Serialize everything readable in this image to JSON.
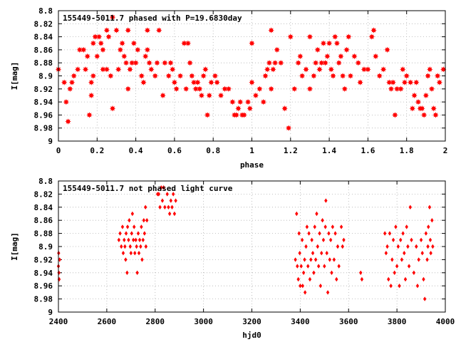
{
  "chart_data": [
    {
      "type": "scatter",
      "title": "155449-5011.7 phased with P=19.6830day",
      "xlabel": "phase",
      "ylabel": "I[mag]",
      "xlim": [
        0,
        2
      ],
      "ylim": [
        9,
        8.8
      ],
      "y_inverted": true,
      "x_ticks": [
        "0",
        "0.2",
        "0.4",
        "0.6",
        "0.8",
        "1",
        "1.2",
        "1.4",
        "1.6",
        "1.8",
        "2"
      ],
      "y_ticks": [
        "8.8",
        "8.82",
        "8.84",
        "8.86",
        "8.88",
        "8.9",
        "8.92",
        "8.94",
        "8.96",
        "8.98",
        "9"
      ],
      "grid": true,
      "marker": "star",
      "color": "#ff0000",
      "points": [
        [
          0.0,
          8.89
        ],
        [
          0.03,
          8.91
        ],
        [
          0.04,
          8.94
        ],
        [
          0.05,
          8.97
        ],
        [
          0.06,
          8.92
        ],
        [
          0.07,
          8.91
        ],
        [
          0.08,
          8.9
        ],
        [
          0.1,
          8.89
        ],
        [
          0.11,
          8.86
        ],
        [
          0.13,
          8.86
        ],
        [
          0.14,
          8.89
        ],
        [
          0.15,
          8.87
        ],
        [
          0.16,
          8.96
        ],
        [
          0.17,
          8.93
        ],
        [
          0.17,
          8.91
        ],
        [
          0.18,
          8.9
        ],
        [
          0.18,
          8.85
        ],
        [
          0.19,
          8.84
        ],
        [
          0.2,
          8.87
        ],
        [
          0.21,
          8.84
        ],
        [
          0.22,
          8.85
        ],
        [
          0.23,
          8.89
        ],
        [
          0.23,
          8.86
        ],
        [
          0.25,
          8.89
        ],
        [
          0.25,
          8.83
        ],
        [
          0.26,
          8.84
        ],
        [
          0.27,
          8.9
        ],
        [
          0.28,
          8.95
        ],
        [
          0.28,
          8.81
        ],
        [
          0.3,
          8.83
        ],
        [
          0.31,
          8.89
        ],
        [
          0.32,
          8.86
        ],
        [
          0.33,
          8.85
        ],
        [
          0.34,
          8.87
        ],
        [
          0.35,
          8.88
        ],
        [
          0.36,
          8.92
        ],
        [
          0.36,
          8.83
        ],
        [
          0.37,
          8.89
        ],
        [
          0.38,
          8.88
        ],
        [
          0.39,
          8.85
        ],
        [
          0.4,
          8.88
        ],
        [
          0.41,
          8.86
        ],
        [
          0.43,
          8.9
        ],
        [
          0.44,
          8.91
        ],
        [
          0.45,
          8.87
        ],
        [
          0.46,
          8.86
        ],
        [
          0.46,
          8.83
        ],
        [
          0.47,
          8.88
        ],
        [
          0.48,
          8.89
        ],
        [
          0.5,
          8.9
        ],
        [
          0.51,
          8.88
        ],
        [
          0.52,
          8.83
        ],
        [
          0.54,
          8.93
        ],
        [
          0.55,
          8.88
        ],
        [
          0.57,
          8.9
        ],
        [
          0.58,
          8.88
        ],
        [
          0.59,
          8.89
        ],
        [
          0.6,
          8.91
        ],
        [
          0.61,
          8.92
        ],
        [
          0.63,
          8.9
        ],
        [
          0.65,
          8.85
        ],
        [
          0.66,
          8.92
        ],
        [
          0.67,
          8.85
        ],
        [
          0.68,
          8.88
        ],
        [
          0.69,
          8.9
        ],
        [
          0.7,
          8.91
        ],
        [
          0.71,
          8.92
        ],
        [
          0.72,
          8.91
        ],
        [
          0.73,
          8.92
        ],
        [
          0.74,
          8.93
        ],
        [
          0.75,
          8.9
        ],
        [
          0.76,
          8.89
        ],
        [
          0.77,
          8.96
        ],
        [
          0.78,
          8.93
        ],
        [
          0.79,
          8.91
        ],
        [
          0.81,
          8.9
        ],
        [
          0.82,
          8.91
        ],
        [
          0.84,
          8.93
        ],
        [
          0.86,
          8.92
        ],
        [
          0.88,
          8.92
        ],
        [
          0.9,
          8.94
        ],
        [
          0.91,
          8.96
        ],
        [
          0.92,
          8.96
        ],
        [
          0.93,
          8.95
        ],
        [
          0.94,
          8.94
        ],
        [
          0.95,
          8.96
        ],
        [
          0.96,
          8.96
        ],
        [
          0.98,
          8.94
        ],
        [
          0.99,
          8.95
        ],
        [
          1.0,
          8.91
        ],
        [
          1.0,
          8.85
        ],
        [
          1.02,
          8.93
        ],
        [
          1.04,
          8.92
        ],
        [
          1.06,
          8.94
        ],
        [
          1.07,
          8.9
        ],
        [
          1.08,
          8.89
        ],
        [
          1.09,
          8.88
        ],
        [
          1.1,
          8.92
        ],
        [
          1.1,
          8.83
        ],
        [
          1.11,
          8.89
        ],
        [
          1.12,
          8.88
        ],
        [
          1.13,
          8.86
        ],
        [
          1.15,
          8.88
        ],
        [
          1.17,
          8.95
        ],
        [
          1.19,
          8.98
        ],
        [
          1.2,
          8.84
        ],
        [
          1.22,
          8.92
        ],
        [
          1.24,
          8.88
        ],
        [
          1.25,
          8.87
        ],
        [
          1.26,
          8.9
        ],
        [
          1.28,
          8.89
        ],
        [
          1.3,
          8.92
        ],
        [
          1.3,
          8.84
        ],
        [
          1.32,
          8.9
        ],
        [
          1.33,
          8.88
        ],
        [
          1.34,
          8.86
        ],
        [
          1.35,
          8.89
        ],
        [
          1.36,
          8.88
        ],
        [
          1.37,
          8.85
        ],
        [
          1.38,
          8.88
        ],
        [
          1.39,
          8.87
        ],
        [
          1.4,
          8.85
        ],
        [
          1.41,
          8.89
        ],
        [
          1.42,
          8.9
        ],
        [
          1.43,
          8.84
        ],
        [
          1.44,
          8.85
        ],
        [
          1.45,
          8.88
        ],
        [
          1.46,
          8.87
        ],
        [
          1.47,
          8.9
        ],
        [
          1.48,
          8.92
        ],
        [
          1.49,
          8.86
        ],
        [
          1.5,
          8.84
        ],
        [
          1.51,
          8.9
        ],
        [
          1.53,
          8.87
        ],
        [
          1.55,
          8.88
        ],
        [
          1.56,
          8.91
        ],
        [
          1.58,
          8.89
        ],
        [
          1.6,
          8.89
        ],
        [
          1.62,
          8.84
        ],
        [
          1.63,
          8.83
        ],
        [
          1.64,
          8.87
        ],
        [
          1.66,
          8.9
        ],
        [
          1.68,
          8.89
        ],
        [
          1.7,
          8.86
        ],
        [
          1.71,
          8.91
        ],
        [
          1.72,
          8.92
        ],
        [
          1.73,
          8.91
        ],
        [
          1.74,
          8.96
        ],
        [
          1.75,
          8.92
        ],
        [
          1.77,
          8.92
        ],
        [
          1.78,
          8.89
        ],
        [
          1.79,
          8.91
        ],
        [
          1.8,
          8.9
        ],
        [
          1.82,
          8.91
        ],
        [
          1.83,
          8.95
        ],
        [
          1.84,
          8.93
        ],
        [
          1.85,
          8.91
        ],
        [
          1.86,
          8.94
        ],
        [
          1.87,
          8.95
        ],
        [
          1.88,
          8.95
        ],
        [
          1.89,
          8.96
        ],
        [
          1.9,
          8.93
        ],
        [
          1.91,
          8.9
        ],
        [
          1.92,
          8.89
        ],
        [
          1.93,
          8.92
        ],
        [
          1.94,
          8.95
        ],
        [
          1.95,
          8.96
        ],
        [
          1.96,
          8.9
        ],
        [
          1.97,
          8.91
        ],
        [
          1.99,
          8.89
        ]
      ]
    },
    {
      "type": "scatter",
      "title": "155449-5011.7 not phased light curve",
      "xlabel": "hjd0",
      "ylabel": "I[mag]",
      "xlim": [
        2400,
        4000
      ],
      "ylim": [
        9,
        8.8
      ],
      "y_inverted": true,
      "x_ticks": [
        "2400",
        "2600",
        "2800",
        "3000",
        "3200",
        "3400",
        "3600",
        "3800",
        "4000"
      ],
      "y_ticks": [
        "8.8",
        "8.82",
        "8.84",
        "8.86",
        "8.88",
        "8.9",
        "8.92",
        "8.94",
        "8.96",
        "8.98",
        "9"
      ],
      "grid": true,
      "marker": "diamond",
      "color": "#ff0000",
      "points": [
        [
          2400,
          8.93
        ],
        [
          2401,
          8.91
        ],
        [
          2402,
          8.94
        ],
        [
          2403,
          8.95
        ],
        [
          2405,
          8.92
        ],
        [
          2650,
          8.89
        ],
        [
          2655,
          8.88
        ],
        [
          2660,
          8.9
        ],
        [
          2665,
          8.87
        ],
        [
          2668,
          8.91
        ],
        [
          2672,
          8.89
        ],
        [
          2675,
          8.9
        ],
        [
          2678,
          8.92
        ],
        [
          2680,
          8.88
        ],
        [
          2684,
          8.94
        ],
        [
          2686,
          8.87
        ],
        [
          2690,
          8.89
        ],
        [
          2693,
          8.86
        ],
        [
          2697,
          8.9
        ],
        [
          2700,
          8.91
        ],
        [
          2703,
          8.88
        ],
        [
          2706,
          8.85
        ],
        [
          2710,
          8.89
        ],
        [
          2713,
          8.87
        ],
        [
          2716,
          8.91
        ],
        [
          2720,
          8.89
        ],
        [
          2723,
          8.9
        ],
        [
          2726,
          8.94
        ],
        [
          2730,
          8.88
        ],
        [
          2733,
          8.91
        ],
        [
          2736,
          8.89
        ],
        [
          2740,
          8.9
        ],
        [
          2743,
          8.87
        ],
        [
          2746,
          8.92
        ],
        [
          2750,
          8.89
        ],
        [
          2753,
          8.86
        ],
        [
          2756,
          8.88
        ],
        [
          2760,
          8.84
        ],
        [
          2762,
          8.9
        ],
        [
          2766,
          8.86
        ],
        [
          2810,
          8.82
        ],
        [
          2815,
          8.82
        ],
        [
          2820,
          8.84
        ],
        [
          2825,
          8.81
        ],
        [
          2830,
          8.83
        ],
        [
          2835,
          8.81
        ],
        [
          2840,
          8.84
        ],
        [
          2850,
          8.82
        ],
        [
          2855,
          8.84
        ],
        [
          2860,
          8.85
        ],
        [
          2865,
          8.83
        ],
        [
          2870,
          8.84
        ],
        [
          2875,
          8.82
        ],
        [
          2880,
          8.85
        ],
        [
          2885,
          8.83
        ],
        [
          3380,
          8.92
        ],
        [
          3385,
          8.85
        ],
        [
          3388,
          8.93
        ],
        [
          3392,
          8.95
        ],
        [
          3395,
          8.88
        ],
        [
          3398,
          8.91
        ],
        [
          3400,
          8.96
        ],
        [
          3404,
          8.93
        ],
        [
          3408,
          8.89
        ],
        [
          3410,
          8.96
        ],
        [
          3414,
          8.94
        ],
        [
          3418,
          8.92
        ],
        [
          3420,
          8.97
        ],
        [
          3424,
          8.9
        ],
        [
          3428,
          8.87
        ],
        [
          3432,
          8.93
        ],
        [
          3436,
          8.88
        ],
        [
          3440,
          8.95
        ],
        [
          3444,
          8.92
        ],
        [
          3448,
          8.89
        ],
        [
          3452,
          8.91
        ],
        [
          3456,
          8.94
        ],
        [
          3460,
          8.87
        ],
        [
          3464,
          8.92
        ],
        [
          3468,
          8.85
        ],
        [
          3472,
          8.9
        ],
        [
          3476,
          8.93
        ],
        [
          3480,
          8.88
        ],
        [
          3484,
          8.96
        ],
        [
          3488,
          8.91
        ],
        [
          3492,
          8.86
        ],
        [
          3496,
          8.89
        ],
        [
          3500,
          8.93
        ],
        [
          3504,
          8.87
        ],
        [
          3506,
          8.83
        ],
        [
          3510,
          8.91
        ],
        [
          3514,
          8.97
        ],
        [
          3518,
          8.88
        ],
        [
          3522,
          8.92
        ],
        [
          3526,
          8.89
        ],
        [
          3530,
          8.94
        ],
        [
          3534,
          8.87
        ],
        [
          3540,
          8.92
        ],
        [
          3545,
          8.88
        ],
        [
          3550,
          8.95
        ],
        [
          3555,
          8.9
        ],
        [
          3560,
          8.93
        ],
        [
          3570,
          8.87
        ],
        [
          3575,
          8.9
        ],
        [
          3580,
          8.89
        ],
        [
          3650,
          8.94
        ],
        [
          3655,
          8.95
        ],
        [
          3750,
          8.88
        ],
        [
          3755,
          8.91
        ],
        [
          3760,
          8.9
        ],
        [
          3765,
          8.95
        ],
        [
          3770,
          8.88
        ],
        [
          3775,
          8.96
        ],
        [
          3780,
          8.92
        ],
        [
          3785,
          8.89
        ],
        [
          3790,
          8.94
        ],
        [
          3795,
          8.87
        ],
        [
          3800,
          8.93
        ],
        [
          3805,
          8.9
        ],
        [
          3810,
          8.96
        ],
        [
          3815,
          8.89
        ],
        [
          3820,
          8.92
        ],
        [
          3825,
          8.88
        ],
        [
          3830,
          8.91
        ],
        [
          3835,
          8.95
        ],
        [
          3840,
          8.87
        ],
        [
          3845,
          8.9
        ],
        [
          3850,
          8.93
        ],
        [
          3855,
          8.84
        ],
        [
          3860,
          8.89
        ],
        [
          3870,
          8.94
        ],
        [
          3880,
          8.9
        ],
        [
          3885,
          8.96
        ],
        [
          3890,
          8.92
        ],
        [
          3900,
          8.89
        ],
        [
          3905,
          8.91
        ],
        [
          3910,
          8.95
        ],
        [
          3915,
          8.98
        ],
        [
          3920,
          8.88
        ],
        [
          3925,
          8.92
        ],
        [
          3928,
          8.9
        ],
        [
          3930,
          8.87
        ],
        [
          3935,
          8.84
        ],
        [
          3938,
          8.89
        ],
        [
          3940,
          8.91
        ],
        [
          3945,
          8.86
        ],
        [
          3948,
          8.9
        ]
      ]
    }
  ]
}
